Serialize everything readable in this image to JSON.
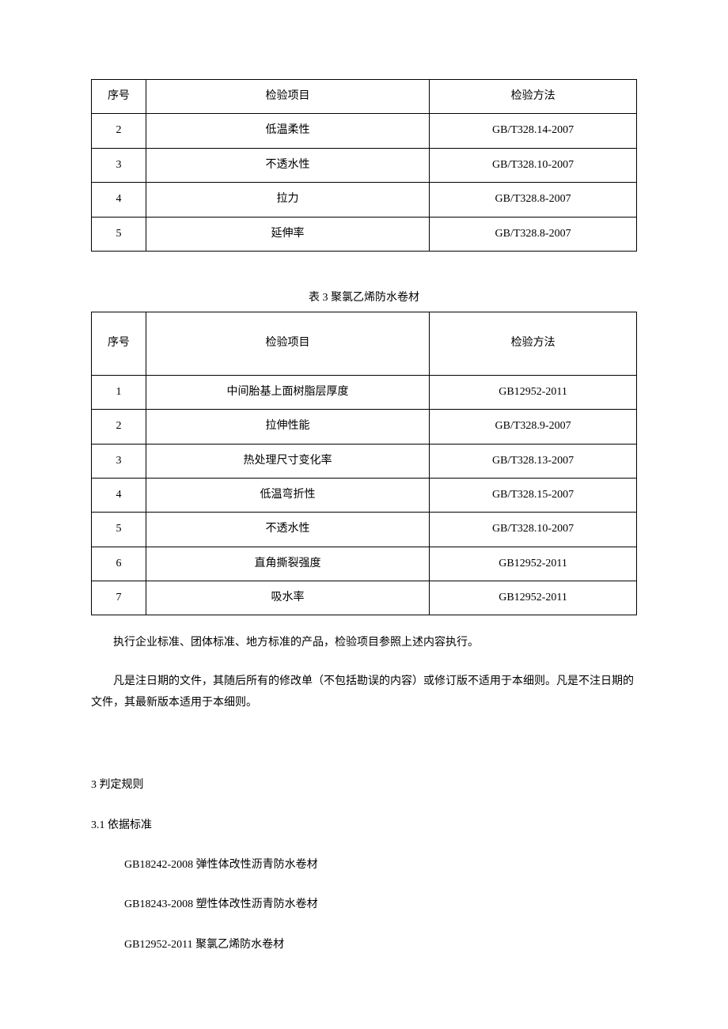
{
  "table1": {
    "columns": [
      "序号",
      "检验项目",
      "检验方法"
    ],
    "rows": [
      [
        "2",
        "低温柔性",
        "GB/T328.14-2007"
      ],
      [
        "3",
        "不透水性",
        "GB/T328.10-2007"
      ],
      [
        "4",
        "拉力",
        "GB/T328.8-2007"
      ],
      [
        "5",
        "延伸率",
        "GB/T328.8-2007"
      ]
    ],
    "col_widths_pct": [
      10,
      52,
      38
    ],
    "border_color": "#000000",
    "background_color": "#ffffff",
    "font_size_pt": 10.5
  },
  "table2_caption": "表 3 聚氯乙烯防水卷材",
  "table2": {
    "columns": [
      "序号",
      "检验项目",
      "检验方法"
    ],
    "rows": [
      [
        "1",
        "中间胎基上面树脂层厚度",
        "GB12952-2011"
      ],
      [
        "2",
        "拉伸性能",
        "GB/T328.9-2007"
      ],
      [
        "3",
        "热处理尺寸变化率",
        "GB/T328.13-2007"
      ],
      [
        "4",
        "低温弯折性",
        "GB/T328.15-2007"
      ],
      [
        "5",
        "不透水性",
        "GB/T328.10-2007"
      ],
      [
        "6",
        "直角撕裂强度",
        "GB12952-2011"
      ],
      [
        "7",
        "吸水率",
        "GB12952-2011"
      ]
    ],
    "col_widths_pct": [
      10,
      52,
      38
    ],
    "border_color": "#000000",
    "background_color": "#ffffff",
    "font_size_pt": 10.5
  },
  "paragraphs": {
    "p1": "执行企业标准、团体标准、地方标准的产品，检验项目参照上述内容执行。",
    "p2": "凡是注日期的文件，其随后所有的修改单（不包括勘误的内容）或修订版不适用于本细则。凡是不注日期的文件，其最新版本适用于本细则。"
  },
  "sections": {
    "s3": "3 判定规则",
    "s3_1": "3.1 依据标准"
  },
  "standards": [
    "GB18242-2008 弹性体改性沥青防水卷材",
    "GB18243-2008 塑性体改性沥青防水卷材",
    "GB12952-2011 聚氯乙烯防水卷材"
  ],
  "style": {
    "page_bg": "#ffffff",
    "text_color": "#000000",
    "font_family": "SimSun"
  }
}
